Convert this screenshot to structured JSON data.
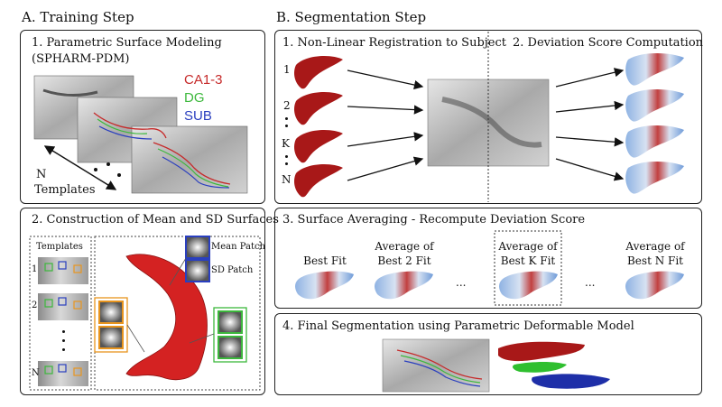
{
  "sectionA": {
    "title": "A. Training Step",
    "panel1": {
      "title_line1": "1. Parametric Surface Modeling",
      "title_line2": "(SPHARM-PDM)",
      "legend": [
        {
          "label": "CA1-3",
          "color": "#c62a2a"
        },
        {
          "label": "DG",
          "color": "#3cb83c"
        },
        {
          "label": "SUB",
          "color": "#2a3fbf"
        }
      ],
      "n_label": "N",
      "templates_label": "Templates"
    },
    "panel2": {
      "title": "2. Construction of Mean and SD Surfaces",
      "templates_label": "Templates",
      "rows": [
        "1",
        "2",
        "N"
      ],
      "mean_patch": "Mean Patch",
      "sd_patch": "SD Patch"
    }
  },
  "sectionB": {
    "title": "B. Segmentation Step",
    "panel1": {
      "title": "1. Non-Linear Registration to Subject",
      "rows": [
        "1",
        "2",
        "K",
        "N"
      ]
    },
    "panel2": {
      "title": "2. Deviation Score Computation"
    },
    "panel3": {
      "title": "3. Surface Averaging - Recompute Deviation Score",
      "items": [
        {
          "line1": "",
          "line2": "Best Fit"
        },
        {
          "line1": "Average of",
          "line2": "Best 2 Fit"
        },
        {
          "line1": "Average of",
          "line2": "Best K Fit"
        },
        {
          "line1": "Average of",
          "line2": "Best N Fit"
        }
      ],
      "ellipsis": "..."
    },
    "panel4": {
      "title": "4. Final Segmentation using Parametric Deformable Model"
    }
  }
}
